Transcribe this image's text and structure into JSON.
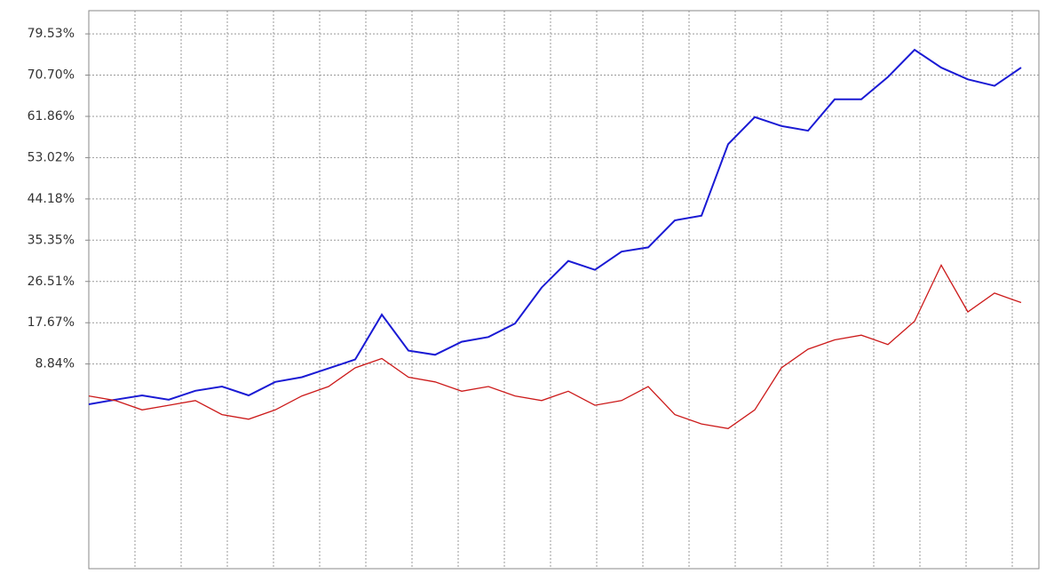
{
  "chart_data": {
    "type": "line",
    "ylim": [
      -35,
      84.5
    ],
    "yticks": [
      {
        "value": 79.53,
        "label": "79.53%"
      },
      {
        "value": 70.7,
        "label": "70.70%"
      },
      {
        "value": 61.86,
        "label": "61.86%"
      },
      {
        "value": 53.02,
        "label": "53.02%"
      },
      {
        "value": 44.18,
        "label": "44.18%"
      },
      {
        "value": 35.35,
        "label": "35.35%"
      },
      {
        "value": 26.51,
        "label": "26.51%"
      },
      {
        "value": 17.67,
        "label": "17.67%"
      },
      {
        "value": 8.84,
        "label": "8.84%"
      }
    ],
    "grid": true,
    "series": [
      {
        "color": "#1a1ad4",
        "values": [
          0.2,
          1.2,
          2.1,
          1.2,
          3.1,
          4.0,
          2.1,
          5.0,
          6.0,
          7.9,
          9.8,
          19.4,
          11.7,
          10.8,
          13.6,
          14.6,
          17.5,
          25.2,
          30.9,
          29.0,
          32.9,
          33.8,
          39.6,
          40.6,
          55.9,
          61.7,
          59.8,
          58.8,
          65.5,
          65.5,
          70.3,
          76.1,
          72.3,
          69.8,
          68.4,
          72.3
        ]
      },
      {
        "color": "#cc1a1a",
        "values": [
          2,
          1,
          -1,
          0,
          1,
          -2,
          -3,
          -1,
          2,
          4,
          8,
          10,
          6,
          5,
          3,
          4,
          2,
          1,
          3,
          0,
          1,
          4,
          -2,
          -4,
          -5,
          -1,
          8,
          12,
          14,
          15,
          13,
          18,
          30,
          20,
          24,
          22
        ]
      }
    ]
  }
}
